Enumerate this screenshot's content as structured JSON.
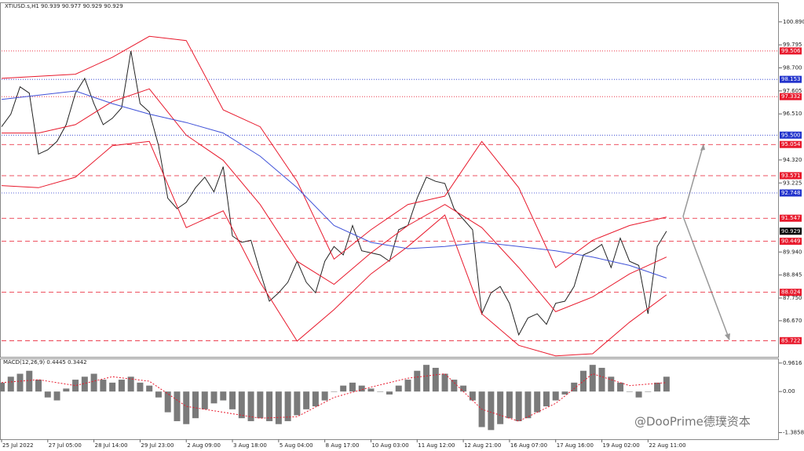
{
  "chart_data": [
    {
      "type": "line",
      "title": "XTIUSD.s,H1  90.939 90.977 90.929 90.929",
      "xlim": [
        0,
        84
      ],
      "ylim": [
        84.95,
        101.78
      ],
      "xticks": [
        {
          "value": 0,
          "label": "25 Jul 2022"
        },
        {
          "value": 5,
          "label": "27 Jul 05:00"
        },
        {
          "value": 10,
          "label": "28 Jul 14:00"
        },
        {
          "value": 15,
          "label": "29 Jul 23:00"
        },
        {
          "value": 20,
          "label": "2 Aug 09:00"
        },
        {
          "value": 25,
          "label": "3 Aug 18:00"
        },
        {
          "value": 30,
          "label": "5 Aug 04:00"
        },
        {
          "value": 35,
          "label": "8 Aug 17:00"
        },
        {
          "value": 40,
          "label": "10 Aug 03:00"
        },
        {
          "value": 45,
          "label": "11 Aug 12:00"
        },
        {
          "value": 50,
          "label": "12 Aug 21:00"
        },
        {
          "value": 55,
          "label": "16 Aug 07:00"
        },
        {
          "value": 60,
          "label": "17 Aug 16:00"
        },
        {
          "value": 65,
          "label": "19 Aug 02:00"
        },
        {
          "value": 70,
          "label": "22 Aug 11:00"
        }
      ],
      "yticks": [
        {
          "value": 100.89,
          "label": "100.890"
        },
        99.795,
        {
          "value": 98.7,
          "label": "98.700"
        },
        97.605,
        {
          "value": 96.51,
          "label": "96.510"
        },
        {
          "value": 94.32,
          "label": "94.320"
        },
        93.225,
        {
          "value": 89.94,
          "label": "89.940"
        },
        88.845,
        {
          "value": 87.75,
          "label": "87.750"
        },
        {
          "value": 86.67,
          "label": "86.670"
        }
      ],
      "levels": [
        {
          "value": 99.506,
          "color": "#e8192c",
          "style": "dotted"
        },
        {
          "value": 98.153,
          "color": "#2233cc",
          "style": "dotted"
        },
        {
          "value": 97.332,
          "color": "#e8192c",
          "style": "dotted"
        },
        {
          "value": 95.5,
          "label": "95.500",
          "color": "#2233cc",
          "style": "dotted"
        },
        {
          "value": 95.054,
          "color": "#e8192c",
          "style": "dashed"
        },
        {
          "value": 93.571,
          "color": "#e8192c",
          "style": "dashed"
        },
        {
          "value": 92.748,
          "color": "#2233cc",
          "style": "dotted"
        },
        {
          "value": 91.547,
          "color": "#e8192c",
          "style": "dashed"
        },
        {
          "value": 90.929,
          "color": "#000000",
          "style": "none"
        },
        {
          "value": 90.449,
          "color": "#e8192c",
          "style": "dashed"
        },
        {
          "value": 88.024,
          "color": "#e8192c",
          "style": "dashed"
        },
        {
          "value": 85.722,
          "color": "#e8192c",
          "style": "dashed"
        }
      ],
      "series": [
        {
          "color": "#222222",
          "values": [
            95.9,
            96.5,
            97.8,
            97.5,
            94.6,
            94.8,
            95.2,
            96.0,
            97.5,
            98.2,
            97.0,
            96.0,
            96.3,
            96.8,
            99.5,
            97.0,
            96.6,
            95.0,
            92.5,
            92.0,
            92.3,
            93.0,
            93.5,
            92.8,
            94.0,
            90.7,
            90.4,
            90.5,
            89.0,
            87.6,
            88.0,
            88.5,
            89.5,
            88.5,
            88.0,
            89.5,
            90.2,
            89.8,
            91.2,
            90.0,
            89.9,
            89.8,
            89.5,
            91.0,
            91.2,
            92.5,
            93.5,
            93.3,
            93.2,
            92.0,
            91.5,
            91.0,
            87.0,
            88.0,
            88.3,
            87.5,
            86.0,
            86.8,
            87.0,
            86.5,
            87.5,
            87.6,
            88.3,
            89.8,
            90.0,
            90.3,
            89.2,
            90.6,
            89.5,
            89.3,
            87.0,
            90.2,
            90.929
          ]
        },
        {
          "color": "#e8192c",
          "x": [
            0,
            4,
            8,
            12,
            16,
            20,
            24,
            28,
            32,
            36,
            40,
            44,
            48,
            52,
            56,
            60,
            64,
            68,
            72
          ],
          "values": [
            98.2,
            98.3,
            98.4,
            99.2,
            100.2,
            100.0,
            96.7,
            95.9,
            93.3,
            89.6,
            91.0,
            92.2,
            92.6,
            95.2,
            93.0,
            89.2,
            90.5,
            91.2,
            91.6
          ]
        },
        {
          "color": "#e8192c",
          "x": [
            0,
            4,
            8,
            12,
            16,
            20,
            24,
            28,
            32,
            36,
            40,
            44,
            48,
            52,
            56,
            60,
            64,
            68,
            72
          ],
          "values": [
            95.6,
            95.6,
            96.0,
            97.1,
            97.7,
            95.5,
            94.3,
            92.2,
            89.5,
            88.4,
            89.9,
            91.2,
            92.2,
            91.1,
            89.2,
            87.1,
            87.8,
            88.9,
            89.7
          ]
        },
        {
          "color": "#e8192c",
          "x": [
            0,
            4,
            8,
            12,
            16,
            20,
            24,
            28,
            32,
            36,
            40,
            44,
            48,
            52,
            56,
            60,
            64,
            68,
            72
          ],
          "values": [
            93.1,
            93.0,
            93.5,
            95.0,
            95.2,
            91.1,
            91.9,
            88.5,
            85.7,
            87.2,
            88.9,
            90.2,
            91.7,
            87.0,
            85.5,
            85.0,
            85.1,
            86.6,
            87.9
          ]
        },
        {
          "color": "#3f51d8",
          "x": [
            0,
            4,
            8,
            12,
            16,
            20,
            24,
            28,
            32,
            36,
            40,
            44,
            48,
            52,
            56,
            60,
            64,
            68,
            72
          ],
          "values": [
            97.2,
            97.4,
            97.6,
            97.0,
            96.5,
            96.1,
            95.6,
            94.5,
            93.0,
            91.2,
            90.4,
            90.1,
            90.2,
            90.4,
            90.2,
            90.0,
            89.7,
            89.3,
            88.7
          ]
        }
      ]
    },
    {
      "type": "bar",
      "title": "MACD(12,26,9) 0.4445 0.3442",
      "xlim": [
        0,
        84
      ],
      "ylim": [
        -1.61,
        1.09
      ],
      "yticks": [
        0.9616,
        {
          "value": 0,
          "label": "0.00"
        },
        -1.3858
      ],
      "series": [
        {
          "color": "#7a7a7a",
          "values": [
            0.3,
            0.5,
            0.6,
            0.7,
            0.4,
            -0.2,
            -0.3,
            0.1,
            0.4,
            0.5,
            0.6,
            0.4,
            0.3,
            0.4,
            0.5,
            0.3,
            0.2,
            -0.2,
            -0.7,
            -1.0,
            -1.1,
            -0.9,
            -0.6,
            -0.4,
            -0.3,
            -0.6,
            -0.9,
            -1.0,
            -0.9,
            -1.0,
            -1.1,
            -1.0,
            -0.8,
            -0.6,
            -0.5,
            -0.3,
            0.0,
            0.2,
            0.3,
            0.2,
            0.1,
            0.0,
            -0.1,
            0.2,
            0.4,
            0.7,
            0.9,
            0.8,
            0.6,
            0.4,
            0.2,
            -0.3,
            -1.2,
            -1.3,
            -1.1,
            -0.9,
            -1.0,
            -0.9,
            -0.7,
            -0.5,
            -0.3,
            -0.1,
            0.3,
            0.7,
            0.9,
            0.8,
            0.5,
            0.3,
            0.0,
            -0.2,
            0.0,
            0.3,
            0.5
          ]
        },
        {
          "type": "line",
          "color": "#e8192c",
          "x": [
            0,
            4,
            8,
            12,
            16,
            20,
            24,
            28,
            32,
            36,
            40,
            44,
            48,
            52,
            56,
            60,
            64,
            68,
            72
          ],
          "values": [
            0.3,
            0.4,
            0.2,
            0.5,
            0.35,
            -0.5,
            -0.7,
            -0.9,
            -0.85,
            -0.2,
            0.15,
            0.45,
            0.6,
            -0.6,
            -1.0,
            -0.4,
            0.6,
            0.2,
            0.3
          ]
        }
      ]
    }
  ],
  "watermark": "@DooPrime德璞资本"
}
